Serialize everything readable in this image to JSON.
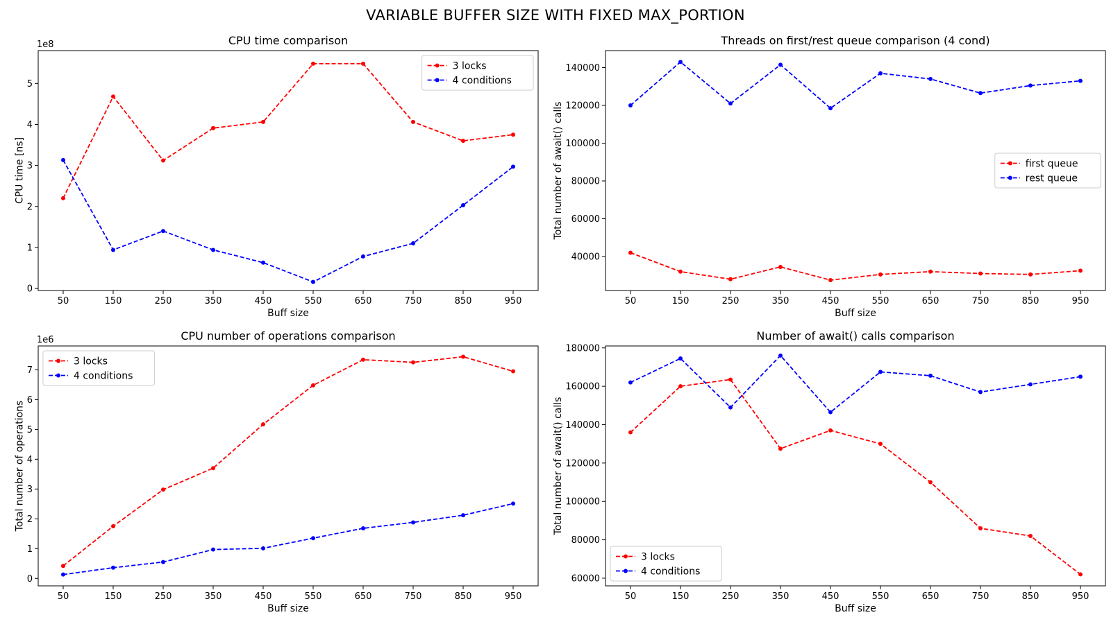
{
  "figure": {
    "title": "VARIABLE BUFFER SIZE WITH FIXED MAX_PORTION"
  },
  "chart_data": [
    {
      "type": "line",
      "title": "CPU time comparison",
      "xlabel": "Buff size",
      "ylabel": "CPU time [ns]",
      "y_offset_label": "1e8",
      "y_scale": 100000000,
      "x": [
        50,
        150,
        250,
        350,
        450,
        550,
        650,
        750,
        850,
        950
      ],
      "xlim": [
        0,
        1000
      ],
      "ylim": [
        -5000000,
        580000000
      ],
      "yticks": [
        0,
        100000000,
        200000000,
        300000000,
        400000000,
        500000000
      ],
      "yticklabels": [
        "0",
        "1",
        "2",
        "3",
        "4",
        "5"
      ],
      "grid": false,
      "legend_position": "upper right",
      "series": [
        {
          "name": "3 locks",
          "color": "#ff0000",
          "values": [
            220000000,
            468000000,
            312000000,
            391000000,
            406000000,
            548000000,
            548000000,
            406000000,
            360000000,
            375000000
          ]
        },
        {
          "name": "4 conditions",
          "color": "#0000ff",
          "values": [
            313000000,
            94000000,
            140000000,
            94000000,
            63000000,
            16000000,
            78000000,
            110000000,
            203000000,
            297000000
          ]
        }
      ]
    },
    {
      "type": "line",
      "title": "Threads on first/rest queue comparison (4 cond)",
      "xlabel": "Buff size",
      "ylabel": "Total number of await() calls",
      "y_offset_label": "",
      "y_scale": 1,
      "x": [
        50,
        150,
        250,
        350,
        450,
        550,
        650,
        750,
        850,
        950
      ],
      "xlim": [
        0,
        1000
      ],
      "ylim": [
        22000,
        149000
      ],
      "yticks": [
        40000,
        60000,
        80000,
        100000,
        120000,
        140000
      ],
      "yticklabels": [
        "40000",
        "60000",
        "80000",
        "100000",
        "120000",
        "140000"
      ],
      "grid": false,
      "legend_position": "center right",
      "series": [
        {
          "name": "first queue",
          "color": "#ff0000",
          "values": [
            42000,
            32000,
            28000,
            34500,
            27500,
            30500,
            32000,
            31000,
            30500,
            32500
          ]
        },
        {
          "name": "rest queue",
          "color": "#0000ff",
          "values": [
            120000,
            143000,
            121000,
            141500,
            118500,
            137000,
            134000,
            126500,
            130500,
            133000
          ]
        }
      ]
    },
    {
      "type": "line",
      "title": "CPU number of operations comparison",
      "xlabel": "Buff size",
      "ylabel": "Total number of operations",
      "y_offset_label": "1e6",
      "y_scale": 1000000,
      "x": [
        50,
        150,
        250,
        350,
        450,
        550,
        650,
        750,
        850,
        950
      ],
      "xlim": [
        0,
        1000
      ],
      "ylim": [
        -250000,
        7800000
      ],
      "yticks": [
        0,
        1000000,
        2000000,
        3000000,
        4000000,
        5000000,
        6000000,
        7000000
      ],
      "yticklabels": [
        "0",
        "1",
        "2",
        "3",
        "4",
        "5",
        "6",
        "7"
      ],
      "grid": false,
      "legend_position": "upper left",
      "series": [
        {
          "name": "3 locks",
          "color": "#ff0000",
          "values": [
            420000,
            1750000,
            2980000,
            3700000,
            5170000,
            6480000,
            7340000,
            7250000,
            7440000,
            6950000
          ]
        },
        {
          "name": "4 conditions",
          "color": "#0000ff",
          "values": [
            130000,
            360000,
            550000,
            970000,
            1010000,
            1350000,
            1680000,
            1880000,
            2120000,
            2510000
          ]
        }
      ]
    },
    {
      "type": "line",
      "title": "Number of await() calls comparison",
      "xlabel": "Buff size",
      "ylabel": "Total number of await() calls",
      "y_offset_label": "",
      "y_scale": 1,
      "x": [
        50,
        150,
        250,
        350,
        450,
        550,
        650,
        750,
        850,
        950
      ],
      "xlim": [
        0,
        1000
      ],
      "ylim": [
        56000,
        181000
      ],
      "yticks": [
        60000,
        80000,
        100000,
        120000,
        140000,
        160000,
        180000
      ],
      "yticklabels": [
        "60000",
        "80000",
        "100000",
        "120000",
        "140000",
        "160000",
        "180000"
      ],
      "grid": false,
      "legend_position": "lower left",
      "series": [
        {
          "name": "3 locks",
          "color": "#ff0000",
          "values": [
            136000,
            160000,
            163500,
            127500,
            137000,
            130000,
            110000,
            86000,
            82000,
            62000
          ]
        },
        {
          "name": "4 conditions",
          "color": "#0000ff",
          "values": [
            162000,
            174500,
            149000,
            176000,
            146500,
            167500,
            165500,
            157000,
            161000,
            165000
          ]
        }
      ]
    }
  ]
}
